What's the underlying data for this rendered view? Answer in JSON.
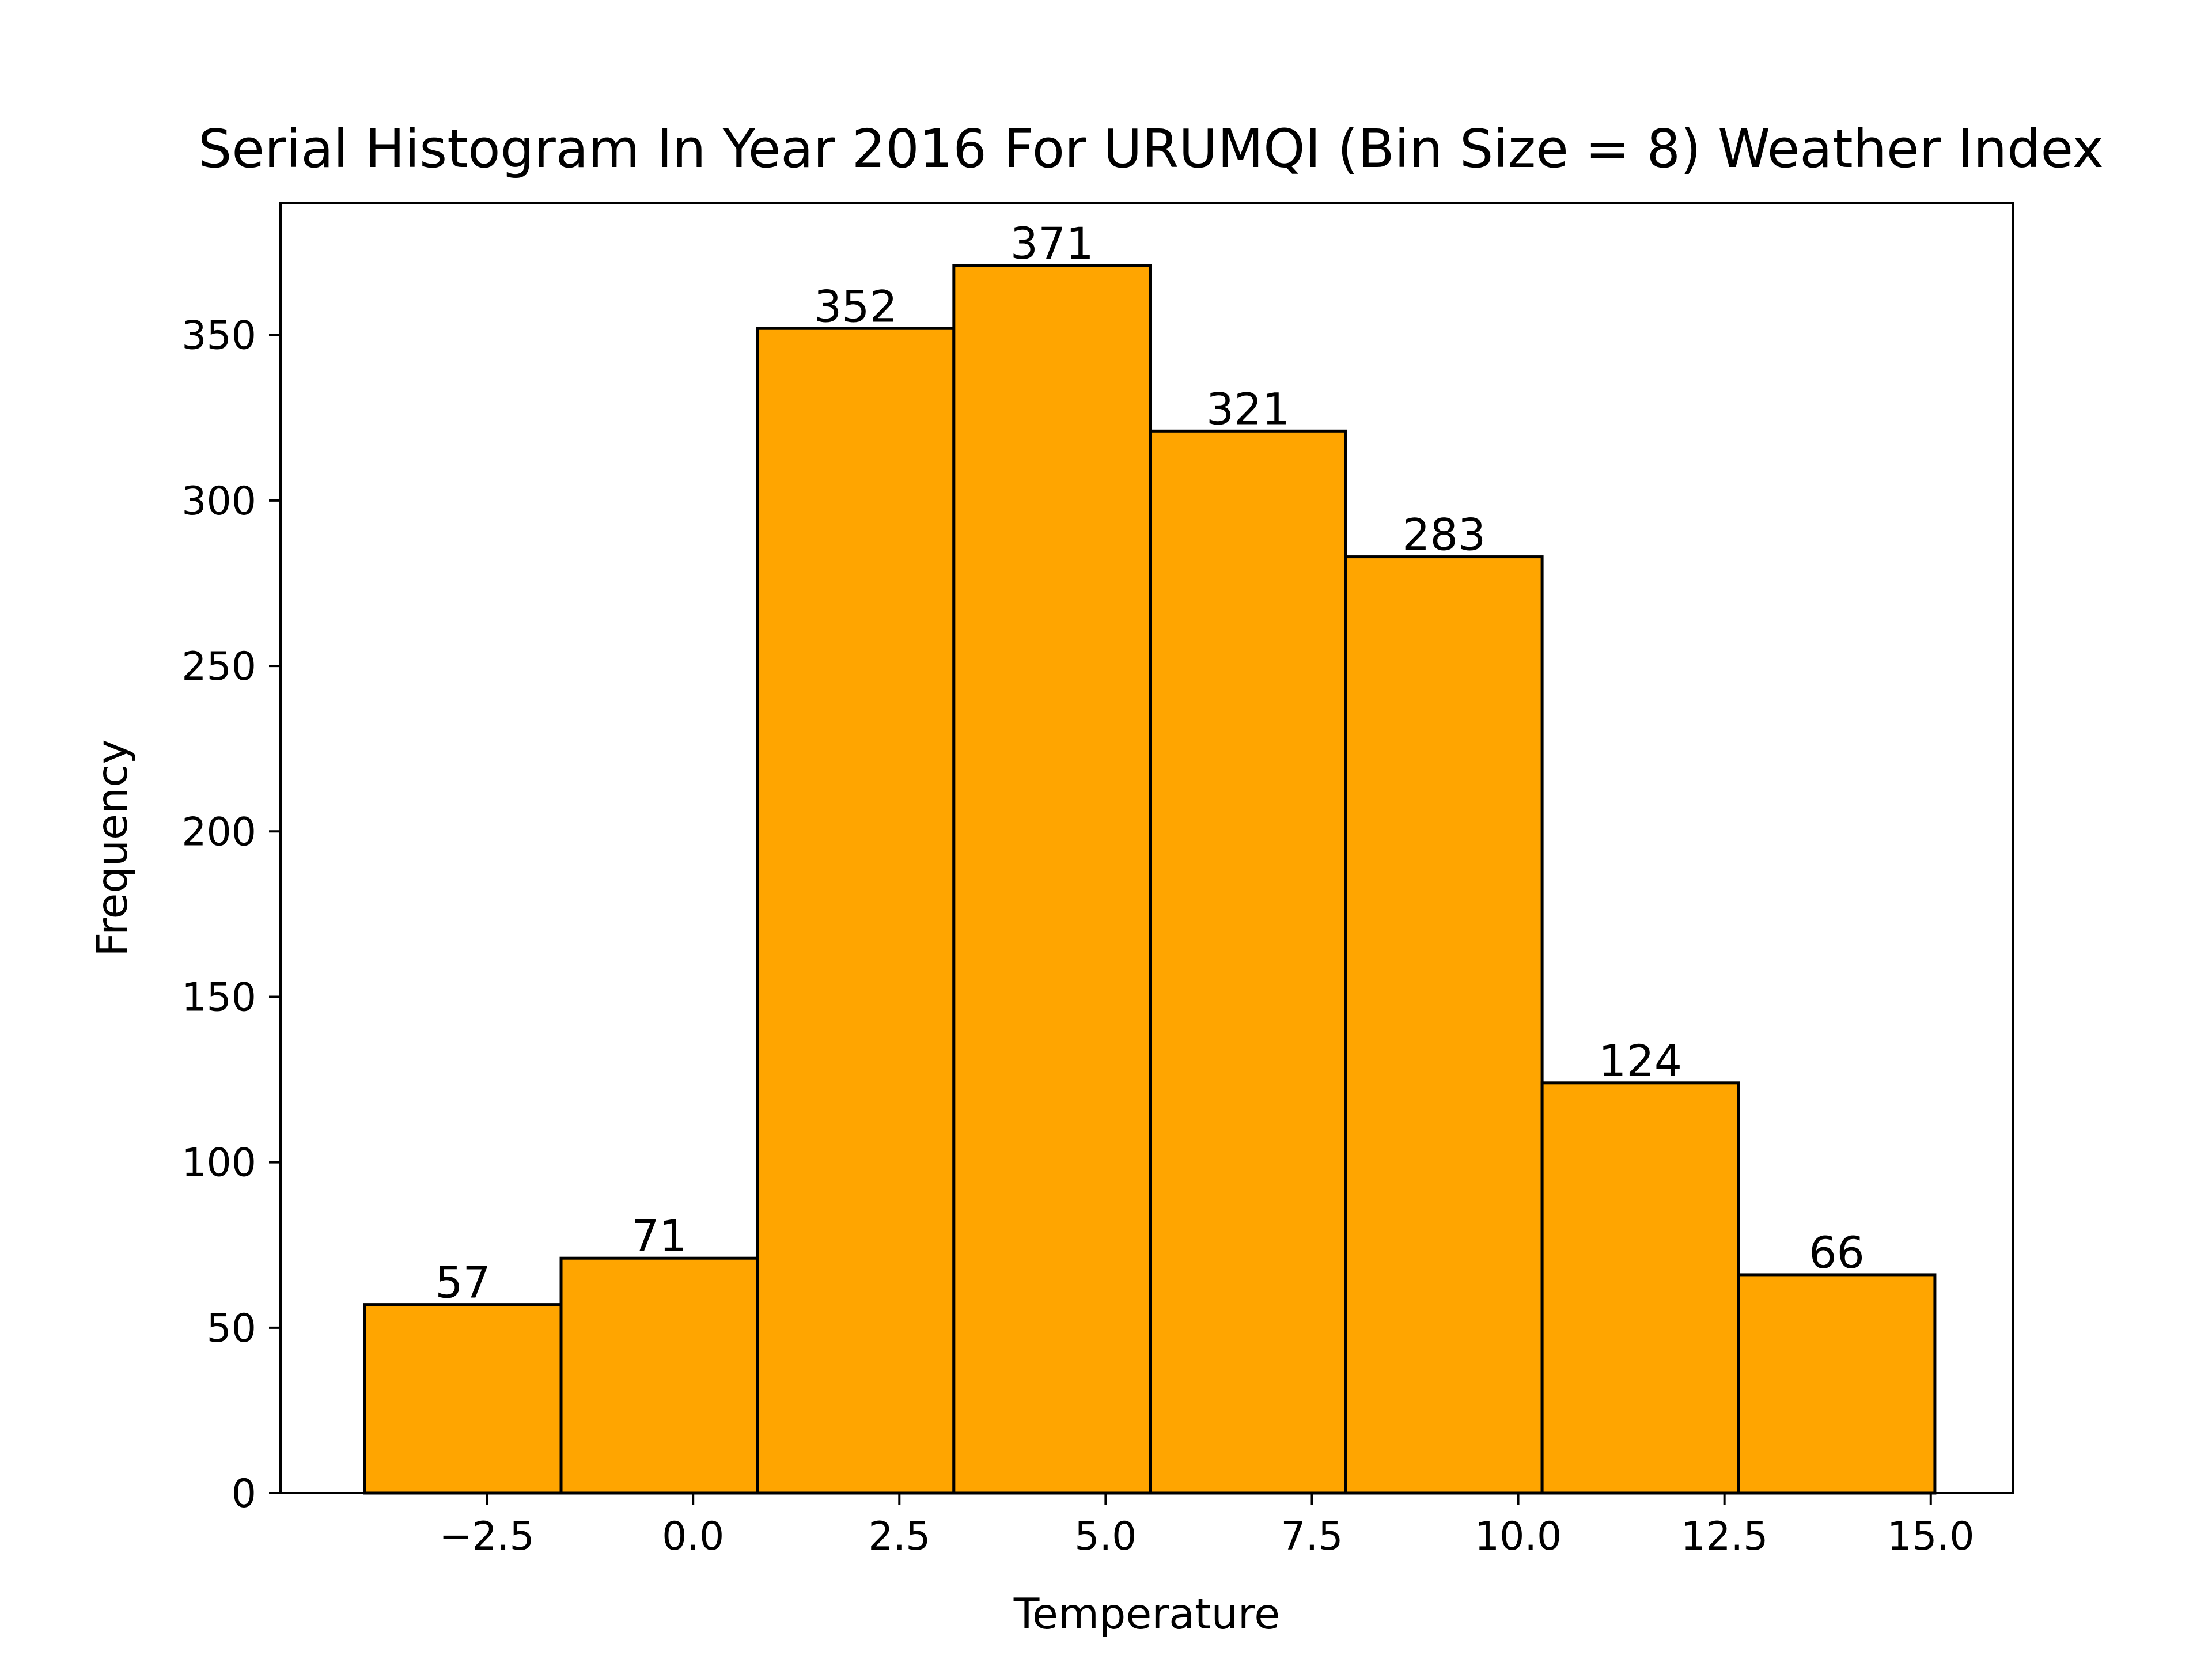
{
  "chart_data": {
    "type": "bar",
    "title": "Serial Histogram In Year 2016 For URUMQI (Bin Size = 8) Weather Index",
    "xlabel": "Temperature",
    "ylabel": "Frequency",
    "bin_edges": [
      -3.98,
      -1.6,
      0.78,
      3.16,
      5.54,
      7.91,
      10.29,
      12.67,
      15.05
    ],
    "values": [
      57,
      71,
      352,
      371,
      321,
      283,
      124,
      66
    ],
    "xlim": [
      -5.0,
      16.0
    ],
    "ylim": [
      0,
      390
    ],
    "xticks": [
      -2.5,
      0.0,
      2.5,
      5.0,
      7.5,
      10.0,
      12.5,
      15.0
    ],
    "xtick_labels": [
      "−2.5",
      "0.0",
      "2.5",
      "5.0",
      "7.5",
      "10.0",
      "12.5",
      "15.0"
    ],
    "yticks": [
      0,
      50,
      100,
      150,
      200,
      250,
      300,
      350
    ],
    "ytick_labels": [
      "0",
      "50",
      "100",
      "150",
      "200",
      "250",
      "300",
      "350"
    ],
    "bar_color": "#FFA500",
    "edge_color": "#000000",
    "grid": false,
    "legend": "none"
  }
}
